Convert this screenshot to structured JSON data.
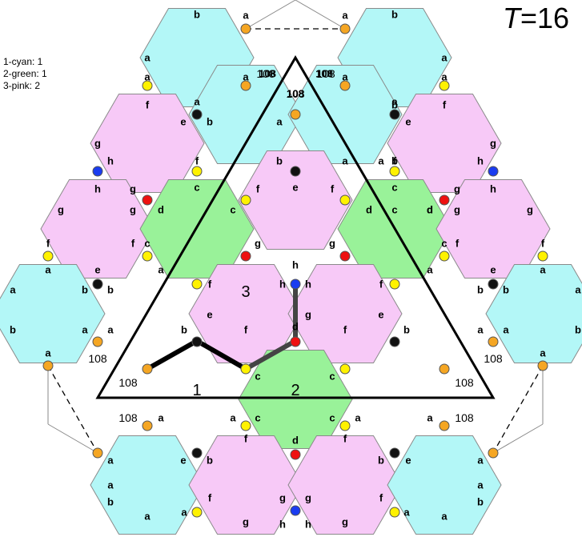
{
  "title": {
    "symbol": "T",
    "equals_value": "=16"
  },
  "legend": [
    {
      "text": "1-cyan: 1"
    },
    {
      "text": "2-green: 1"
    },
    {
      "text": "3-pink: 2"
    }
  ],
  "colors": {
    "cyan": "#b3f7f7",
    "green": "#99f299",
    "pink": "#f7c9f7",
    "edge": "#8a8a8a",
    "orange_vertex": "#f5a623",
    "yellow_vertex": "#fff200",
    "red_vertex": "#ee1111",
    "black_vertex": "#111111",
    "blue_vertex": "#1a3cf0"
  },
  "hexagons": [
    {
      "color": "cyan",
      "labels": [
        "b",
        "a",
        "a"
      ]
    },
    {
      "color": "cyan",
      "labels": [
        "b",
        "a",
        "a"
      ]
    },
    {
      "color": "pink",
      "labels": [
        "f",
        "g",
        "e"
      ]
    },
    {
      "color": "cyan",
      "labels": [
        "a",
        "b",
        "a"
      ]
    },
    {
      "color": "cyan",
      "labels": [
        "a",
        "b",
        "a"
      ]
    },
    {
      "color": "pink",
      "labels": [
        "f",
        "g",
        "e"
      ]
    },
    {
      "color": "pink",
      "labels": [
        "h",
        "g",
        "g",
        "f"
      ]
    },
    {
      "color": "green",
      "labels": [
        "c",
        "d",
        "c",
        "d",
        "c",
        "a"
      ]
    },
    {
      "color": "pink",
      "labels": [
        "e",
        "f",
        "g",
        "g",
        "f"
      ]
    },
    {
      "color": "green",
      "labels": [
        "c",
        "d",
        "c",
        "d",
        "c",
        "a"
      ]
    },
    {
      "color": "pink",
      "labels": [
        "h",
        "g",
        "g",
        "f"
      ]
    },
    {
      "color": "cyan",
      "labels": [
        "a",
        "b",
        "b",
        "a"
      ]
    },
    {
      "color": "pink",
      "labels": [
        "h",
        "g",
        "f",
        "e"
      ]
    },
    {
      "color": "pink",
      "labels": [
        "h",
        "g",
        "e",
        "f"
      ]
    },
    {
      "color": "cyan",
      "labels": [
        "a",
        "b",
        "b",
        "a"
      ]
    },
    {
      "color": "green",
      "labels": [
        "c",
        "d",
        "c"
      ]
    },
    {
      "color": "cyan",
      "labels": [
        "a",
        "b",
        "a"
      ]
    },
    {
      "color": "pink",
      "labels": [
        "e",
        "f",
        "g"
      ]
    },
    {
      "color": "pink",
      "labels": [
        "h",
        "g",
        "f"
      ]
    },
    {
      "color": "cyan",
      "labels": [
        "a",
        "b",
        "a"
      ]
    }
  ],
  "vertex_labels": [
    "b",
    "a",
    "a",
    "b",
    "a",
    "a",
    "a",
    "a",
    "108",
    "108",
    "a",
    "a",
    "f",
    "e",
    "b",
    "108",
    "a",
    "b",
    "e",
    "f",
    "g",
    "a",
    "a",
    "b",
    "b",
    "g",
    "h",
    "f",
    "a",
    "e",
    "a",
    "f",
    "h",
    "h",
    "g",
    "c",
    "f",
    "f",
    "c",
    "g",
    "h",
    "g",
    "g",
    "d",
    "c",
    "d",
    "d",
    "c",
    "d",
    "g",
    "g",
    "f",
    "f",
    "c",
    "g",
    "h",
    "g",
    "c",
    "f",
    "f",
    "e",
    "a",
    "a",
    "f",
    "h",
    "h",
    "f",
    "a",
    "a",
    "e",
    "a",
    "b",
    "b",
    "e",
    "g",
    "e",
    "b",
    "b",
    "a",
    "b",
    "a",
    "a",
    "b",
    "f",
    "d",
    "f",
    "b",
    "a",
    "a",
    "b",
    "a",
    "c",
    "c",
    "a",
    "a",
    "a",
    "c",
    "c",
    "a",
    "a",
    "b",
    "e",
    "f",
    "d",
    "f",
    "e",
    "b",
    "a",
    "a",
    "f",
    "g",
    "g",
    "f",
    "a",
    "a",
    "b",
    "a",
    "h",
    "h",
    "a",
    "b",
    "a",
    "g",
    "g",
    "a"
  ],
  "angles": [
    "108",
    "108",
    "108",
    "108",
    "108",
    "108",
    "108",
    "108",
    "108"
  ],
  "regions": [
    "1",
    "2",
    "3"
  ]
}
